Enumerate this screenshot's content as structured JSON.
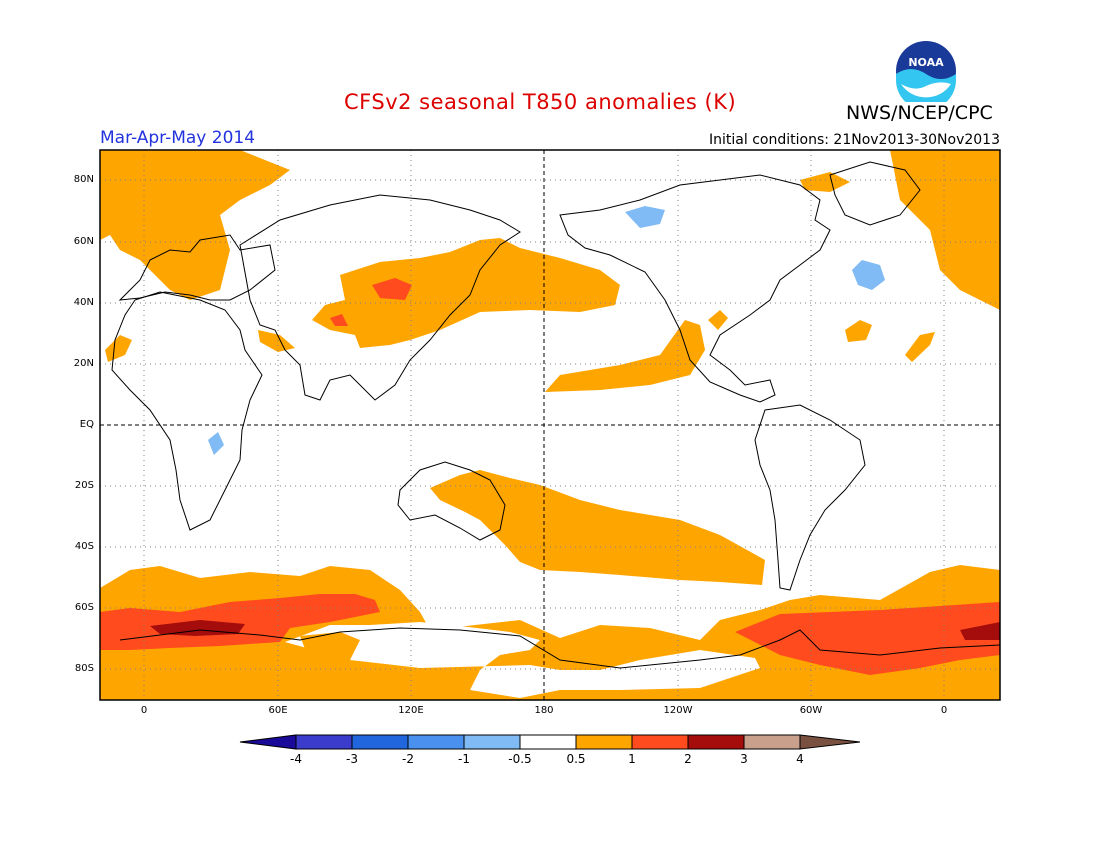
{
  "title": "CFSv2 seasonal T850 anomalies (K)",
  "agency": "NWS/NCEP/CPC",
  "logo_text": "NOAA",
  "season": "Mar-Apr-May 2014",
  "initial_conditions": "Initial conditions: 21Nov2013-30Nov2013",
  "lat_labels": [
    "80N",
    "60N",
    "40N",
    "20N",
    "EQ",
    "20S",
    "40S",
    "60S",
    "80S"
  ],
  "lon_labels": [
    "0",
    "60E",
    "120E",
    "180",
    "120W",
    "60W",
    "0"
  ],
  "colorbar": {
    "labels": [
      "-4",
      "-3",
      "-2",
      "-1",
      "-0.5",
      "0.5",
      "1",
      "2",
      "3",
      "4"
    ],
    "colors": [
      "#1a0a99",
      "#3b3bcc",
      "#2266dd",
      "#4a90ee",
      "#80bbf5",
      "#ffffff",
      "#ffa500",
      "#ff4b1e",
      "#a50c0c",
      "#c8a08c",
      "#7a5040"
    ]
  },
  "map_colors": {
    "weak_warm": "#ffa500",
    "warm": "#ff4b1e",
    "strong_warm": "#a50c0c",
    "weak_cold": "#80bbf5",
    "coast": "#000000"
  }
}
